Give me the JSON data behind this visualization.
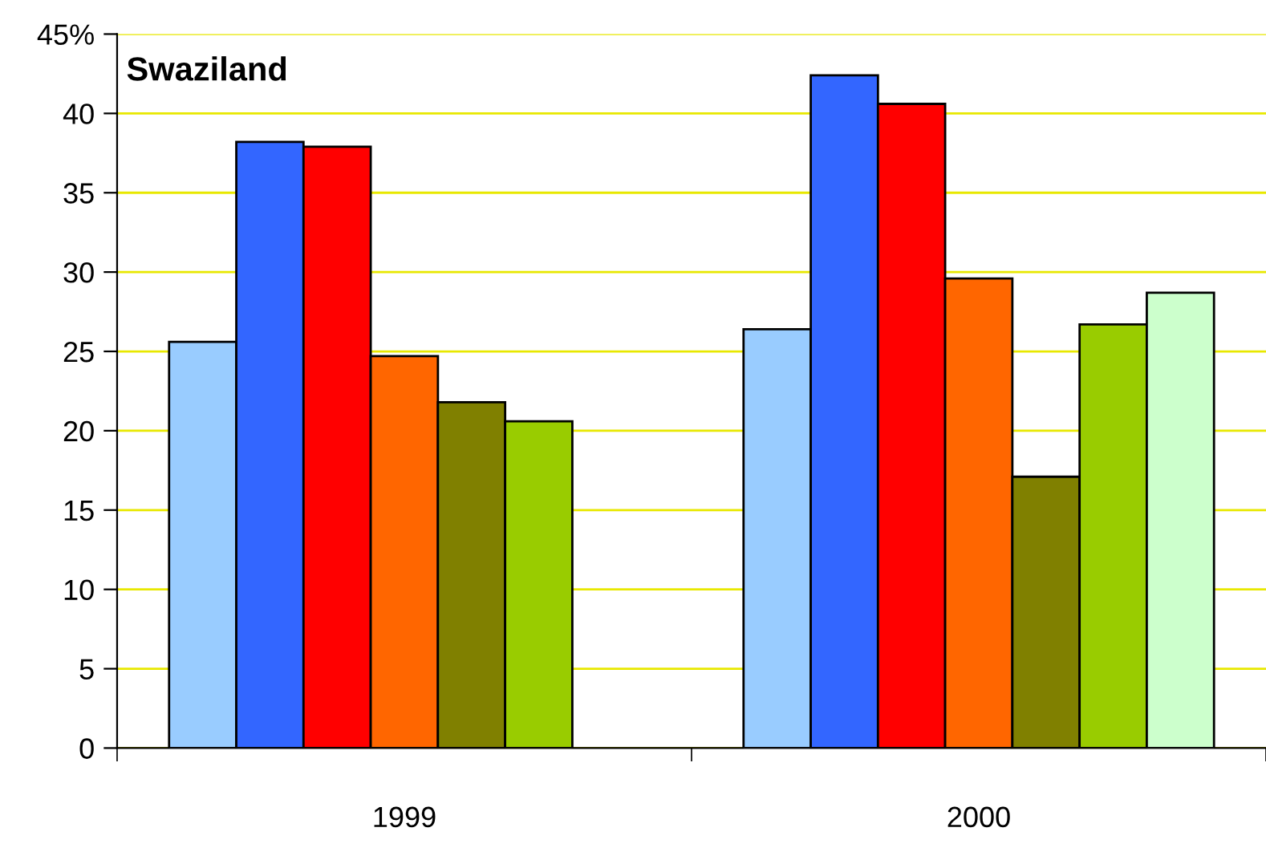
{
  "chart_data": {
    "type": "bar",
    "title": "Swaziland",
    "categories": [
      "1999",
      "2000"
    ],
    "series": [
      {
        "color": "#99ccff",
        "values": [
          25.6,
          26.4
        ]
      },
      {
        "color": "#3366ff",
        "values": [
          38.2,
          42.4
        ]
      },
      {
        "color": "#ff0000",
        "values": [
          37.9,
          40.6
        ]
      },
      {
        "color": "#ff6600",
        "values": [
          24.7,
          29.6
        ]
      },
      {
        "color": "#808000",
        "values": [
          21.8,
          17.1
        ]
      },
      {
        "color": "#99cc00",
        "values": [
          20.6,
          26.7
        ]
      },
      {
        "color": "#ccffcc",
        "values": [
          null,
          28.7
        ]
      }
    ],
    "ylim": [
      0,
      45
    ],
    "yticks": [
      0,
      5,
      10,
      15,
      20,
      25,
      30,
      35,
      40,
      {
        "value": 45,
        "label": "45%"
      }
    ],
    "grid": "y",
    "legend": false
  }
}
